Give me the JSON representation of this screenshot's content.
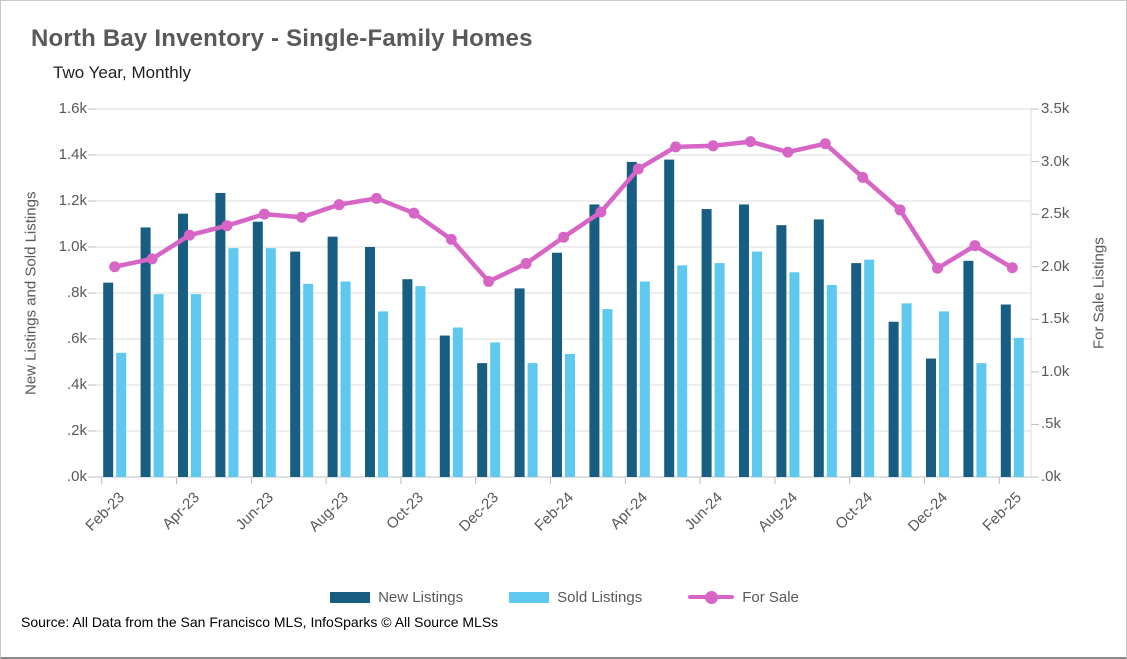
{
  "header": {
    "title": "North Bay Inventory - Single-Family Homes",
    "subtitle": "Two Year, Monthly"
  },
  "chart_data": {
    "type": "bar",
    "title": "North Bay Inventory - Single-Family Homes",
    "subtitle": "Two Year, Monthly",
    "grid": true,
    "legend_position": "bottom",
    "categories": [
      "Feb-23",
      "Mar-23",
      "Apr-23",
      "May-23",
      "Jun-23",
      "Jul-23",
      "Aug-23",
      "Sep-23",
      "Oct-23",
      "Nov-23",
      "Dec-23",
      "Jan-24",
      "Feb-24",
      "Mar-24",
      "Apr-24",
      "May-24",
      "Jun-24",
      "Jul-24",
      "Aug-24",
      "Sep-24",
      "Oct-24",
      "Nov-24",
      "Dec-24",
      "Jan-25",
      "Feb-25"
    ],
    "x_tick_labels": [
      "Feb-23",
      "Apr-23",
      "Jun-23",
      "Aug-23",
      "Oct-23",
      "Dec-23",
      "Feb-24",
      "Apr-24",
      "Jun-24",
      "Aug-24",
      "Oct-24",
      "Dec-24",
      "Feb-25"
    ],
    "series": [
      {
        "name": "New Listings",
        "type": "bar",
        "axis": "left",
        "color": "#175E82",
        "values": [
          845,
          1085,
          1145,
          1235,
          1110,
          980,
          1045,
          1000,
          860,
          615,
          495,
          820,
          975,
          1185,
          1370,
          1380,
          1165,
          1185,
          1095,
          1120,
          930,
          675,
          515,
          940,
          750
        ]
      },
      {
        "name": "Sold Listings",
        "type": "bar",
        "axis": "left",
        "color": "#5EC8EE",
        "values": [
          540,
          795,
          795,
          995,
          995,
          840,
          850,
          720,
          830,
          650,
          585,
          495,
          535,
          730,
          850,
          920,
          930,
          980,
          890,
          835,
          945,
          755,
          720,
          495,
          605
        ]
      },
      {
        "name": "For Sale",
        "type": "line",
        "axis": "right",
        "color": "#D765C6",
        "values": [
          2000,
          2075,
          2300,
          2390,
          2500,
          2470,
          2590,
          2650,
          2510,
          2260,
          1860,
          2030,
          2280,
          2520,
          2930,
          3140,
          3150,
          3190,
          3090,
          3170,
          2850,
          2540,
          1985,
          2200,
          1990
        ]
      }
    ],
    "left_axis": {
      "label": "New Listings and Sold Listings",
      "min": 0,
      "max": 1600,
      "ticks": [
        "1.6k",
        "1.4k",
        "1.2k",
        "1.0k",
        ".8k",
        ".6k",
        ".4k",
        ".2k",
        ".0k"
      ]
    },
    "right_axis": {
      "label": "For Sale Listings",
      "min": 0,
      "max": 3500,
      "ticks": [
        "3.5k",
        "3.0k",
        "2.5k",
        "2.0k",
        "1.5k",
        "1.0k",
        ".5k",
        ".0k"
      ]
    },
    "colors": {
      "grid": "#DCDCDC",
      "axis": "#C2C2C2",
      "tick": "#BDBDBD",
      "text": "#595959"
    }
  },
  "legend": {
    "new_listings_label": "New Listings",
    "sold_listings_label": "Sold Listings",
    "for_sale_label": "For Sale"
  },
  "footer": {
    "source": "Source: All Data from the San Francisco MLS, InfoSparks © All Source MLSs"
  }
}
